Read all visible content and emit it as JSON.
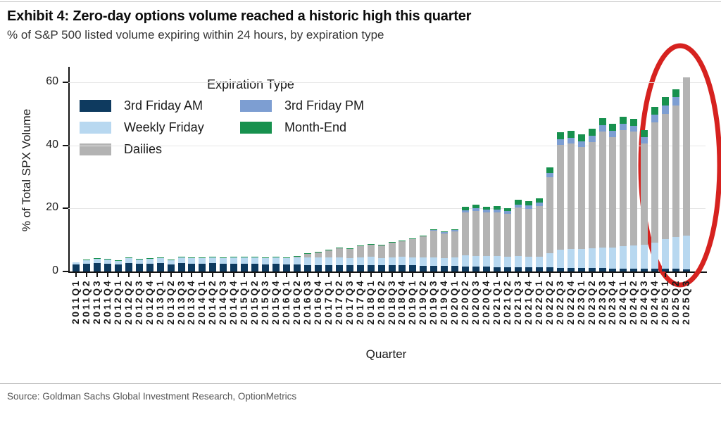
{
  "page": {
    "title": "Exhibit 4: Zero-day options volume reached a historic high this quarter",
    "subtitle": "% of S&P 500 listed volume expiring within 24 hours, by expiration type",
    "source": "Source: Goldman Sachs Global Investment Research, OptionMetrics"
  },
  "chart_data": {
    "type": "bar",
    "stacked": true,
    "title": "Exhibit 4: Zero-day options volume reached a historic high this quarter",
    "subtitle": "% of S&P 500 listed volume expiring within 24 hours, by expiration type",
    "xlabel": "Quarter",
    "ylabel": "% of Total SPX Volume",
    "ylim": [
      0,
      65
    ],
    "yticks": [
      0,
      20,
      40,
      60
    ],
    "grid": "horizontal",
    "legend_title": "Expiration Type",
    "legend_position": "upper-left-inside",
    "legend_display_order": [
      "3rd Friday AM",
      "3rd Friday PM",
      "Weekly Friday",
      "Month-End",
      "Dailies"
    ],
    "categories": [
      "2011Q1",
      "2011Q2",
      "2011Q3",
      "2011Q4",
      "2012Q1",
      "2012Q2",
      "2012Q3",
      "2012Q4",
      "2013Q1",
      "2013Q2",
      "2013Q3",
      "2013Q4",
      "2014Q1",
      "2014Q2",
      "2014Q3",
      "2014Q4",
      "2015Q1",
      "2015Q2",
      "2015Q3",
      "2015Q4",
      "2016Q1",
      "2016Q2",
      "2016Q3",
      "2016Q4",
      "2017Q1",
      "2017Q2",
      "2017Q3",
      "2017Q4",
      "2018Q1",
      "2018Q2",
      "2018Q3",
      "2018Q4",
      "2019Q1",
      "2019Q2",
      "2019Q3",
      "2019Q4",
      "2020Q1",
      "2020Q2",
      "2020Q3",
      "2020Q4",
      "2021Q1",
      "2021Q2",
      "2021Q3",
      "2021Q4",
      "2022Q1",
      "2022Q2",
      "2022Q3",
      "2022Q4",
      "2023Q1",
      "2023Q2",
      "2023Q3",
      "2023Q4",
      "2024Q1",
      "2024Q2",
      "2024Q3",
      "2024Q4",
      "2025Q1",
      "2025Q2",
      "2025Q3"
    ],
    "series": [
      {
        "name": "3rd Friday AM",
        "color": "#0e3a5f",
        "values": [
          2.2,
          2.5,
          2.6,
          2.5,
          2.3,
          2.6,
          2.5,
          2.5,
          2.6,
          2.2,
          2.6,
          2.5,
          2.5,
          2.6,
          2.4,
          2.5,
          2.4,
          2.4,
          2.3,
          2.4,
          2.2,
          2.2,
          2.1,
          2.1,
          2.1,
          2.0,
          1.9,
          2.0,
          2.1,
          1.9,
          1.9,
          2.0,
          1.9,
          1.8,
          1.8,
          1.7,
          1.7,
          1.6,
          1.5,
          1.5,
          1.4,
          1.4,
          1.4,
          1.3,
          1.3,
          1.3,
          1.2,
          1.2,
          1.1,
          1.1,
          1.1,
          1.0,
          1.0,
          1.0,
          0.9,
          0.9,
          0.9,
          0.8,
          0.7
        ]
      },
      {
        "name": "Weekly Friday",
        "color": "#b8d8f0",
        "values": [
          0.8,
          1.2,
          1.4,
          1.4,
          1.2,
          1.6,
          1.4,
          1.6,
          1.7,
          1.6,
          1.9,
          1.8,
          1.9,
          2.0,
          1.9,
          2.0,
          2.0,
          2.1,
          2.1,
          2.2,
          2.1,
          2.3,
          2.3,
          2.3,
          2.4,
          2.4,
          2.3,
          2.4,
          2.5,
          2.4,
          2.5,
          2.6,
          2.6,
          2.6,
          2.7,
          2.6,
          2.8,
          3.6,
          3.5,
          3.4,
          3.5,
          3.4,
          3.5,
          3.4,
          3.5,
          4.5,
          5.8,
          5.9,
          6.0,
          6.2,
          6.6,
          6.5,
          7.0,
          7.2,
          7.5,
          8.2,
          9.3,
          10.2,
          10.6
        ]
      },
      {
        "name": "Dailies",
        "color": "#b3b3b3",
        "values": [
          0,
          0,
          0,
          0,
          0,
          0,
          0,
          0,
          0,
          0,
          0,
          0,
          0,
          0,
          0,
          0,
          0,
          0,
          0,
          0,
          0,
          0.3,
          1.2,
          1.6,
          2.2,
          3.1,
          3.0,
          3.6,
          3.9,
          3.9,
          4.7,
          5.0,
          5.9,
          6.7,
          8.4,
          7.8,
          8.2,
          13.5,
          14.3,
          13.8,
          13.9,
          13.5,
          15.4,
          15.2,
          16.0,
          24.2,
          33.1,
          33.5,
          32.5,
          33.9,
          36.8,
          35.2,
          37.0,
          36.2,
          32.2,
          38.2,
          39.9,
          41.7,
          50.4
        ]
      },
      {
        "name": "3rd Friday PM",
        "color": "#7d9ed2",
        "values": [
          0,
          0,
          0,
          0,
          0,
          0,
          0,
          0,
          0,
          0,
          0,
          0,
          0,
          0,
          0,
          0,
          0,
          0,
          0,
          0,
          0,
          0,
          0,
          0,
          0,
          0,
          0,
          0,
          0,
          0,
          0,
          0,
          0,
          0,
          0.3,
          0.3,
          0.4,
          0.8,
          0.9,
          0.9,
          0.9,
          0.9,
          1.0,
          1.0,
          1.0,
          1.3,
          1.9,
          1.9,
          1.8,
          1.9,
          2.0,
          1.9,
          1.9,
          1.9,
          2.0,
          2.5,
          2.6,
          2.6,
          0
        ]
      },
      {
        "name": "Month-End",
        "color": "#17914e",
        "values": [
          0,
          0.1,
          0.2,
          0.1,
          0.1,
          0.2,
          0.1,
          0.1,
          0.1,
          0.1,
          0.1,
          0.1,
          0.1,
          0.2,
          0.1,
          0.1,
          0.2,
          0.2,
          0.1,
          0.2,
          0.1,
          0.2,
          0.2,
          0.2,
          0.2,
          0.2,
          0.2,
          0.2,
          0.2,
          0.2,
          0.2,
          0.2,
          0.2,
          0.2,
          0.3,
          0.3,
          0.3,
          1.0,
          1.1,
          1.0,
          1.0,
          1.0,
          1.4,
          1.4,
          1.4,
          1.8,
          2.2,
          2.2,
          2.2,
          2.2,
          2.2,
          2.2,
          2.2,
          2.2,
          2.2,
          2.5,
          2.6,
          2.6,
          0
        ]
      }
    ],
    "annotation": {
      "shape": "ellipse",
      "color": "#d6221f",
      "circled_categories": [
        "2024Q4",
        "2025Q1",
        "2025Q2",
        "2025Q3"
      ],
      "meaning": "highlights the historic high reached in the most recent quarters"
    }
  }
}
